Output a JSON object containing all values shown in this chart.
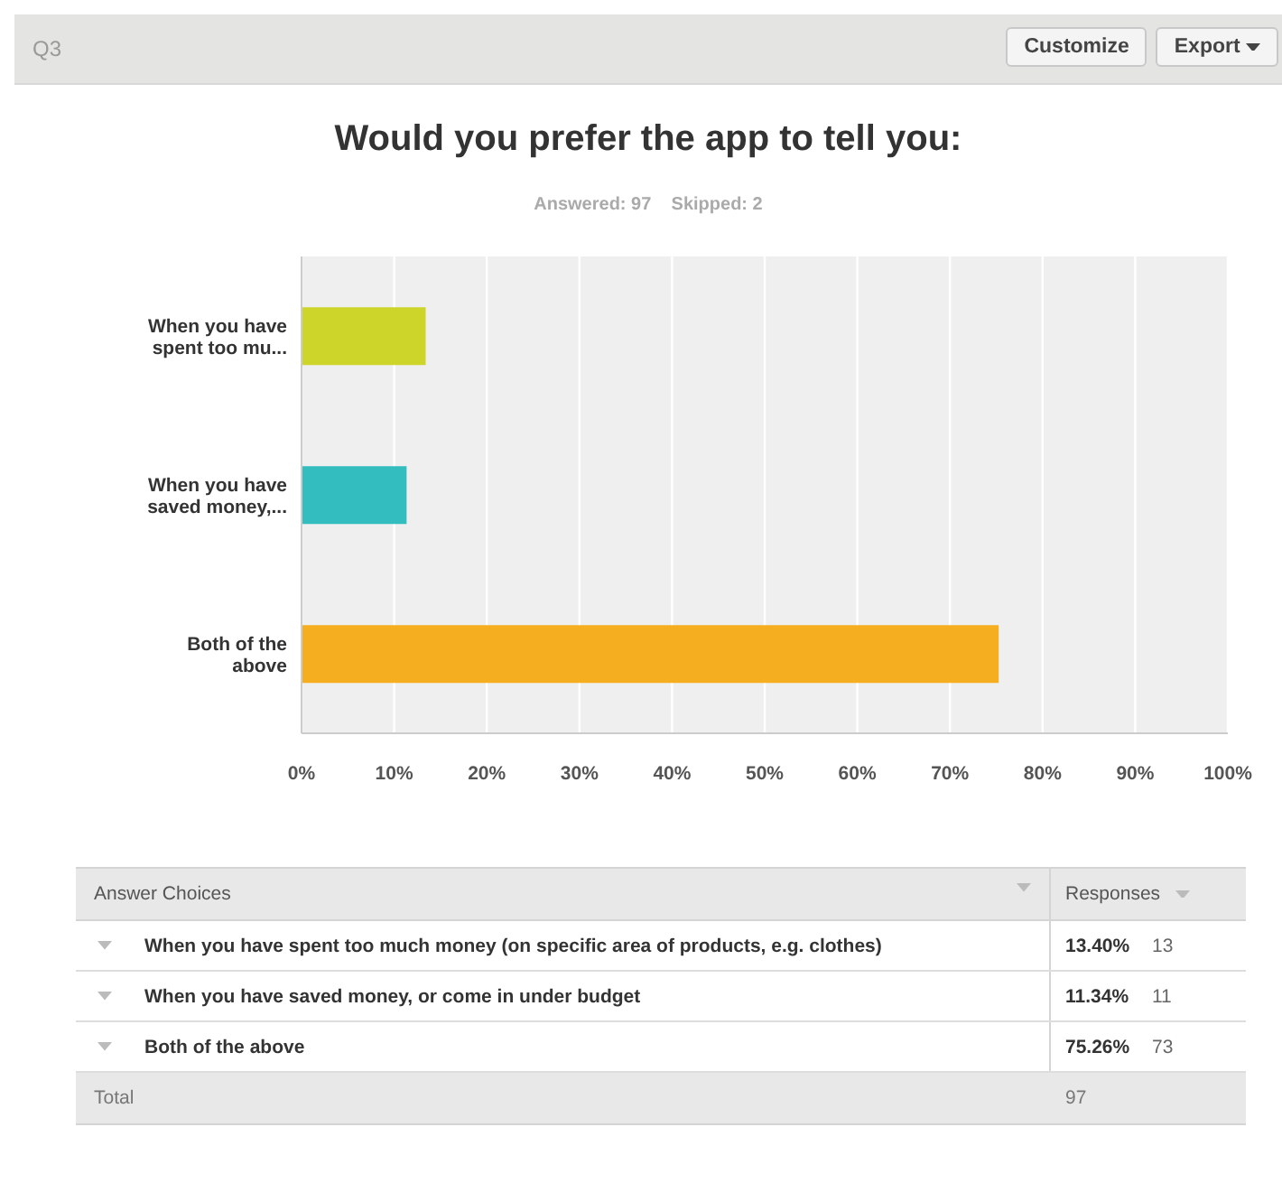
{
  "chart_data": {
    "type": "bar",
    "orientation": "horizontal",
    "title": "Would you prefer the app to tell you:",
    "subtitle": "Answered: 97    Skipped: 2",
    "categories": [
      "When you have spent too mu...",
      "When you have saved money,...",
      "Both of the above"
    ],
    "values": [
      13.4,
      11.34,
      75.26
    ],
    "colors": [
      "#cdd42a",
      "#33bdbf",
      "#f5ae1f"
    ],
    "xlim": [
      0,
      100
    ],
    "xticks": [
      {
        "value": 0,
        "label": "0%"
      },
      {
        "value": 10,
        "label": "10%"
      },
      {
        "value": 20,
        "label": "20%"
      },
      {
        "value": 30,
        "label": "30%"
      },
      {
        "value": 40,
        "label": "40%"
      },
      {
        "value": 50,
        "label": "50%"
      },
      {
        "value": 60,
        "label": "60%"
      },
      {
        "value": 70,
        "label": "70%"
      },
      {
        "value": 80,
        "label": "80%"
      },
      {
        "value": 90,
        "label": "90%"
      },
      {
        "value": 100,
        "label": "100%"
      }
    ],
    "grid": "x",
    "annotations": [
      "Q3",
      "Customize",
      "Export",
      "Answer Choices",
      "Responses",
      "When you have spent too much money (on specific area of products, e.g. clothes)",
      "When you have saved money, or come in under budget",
      "Both of the above",
      "13",
      "11",
      "73",
      "Total",
      "97",
      "13.40%",
      "11.34%",
      "75.26%"
    ]
  }
}
